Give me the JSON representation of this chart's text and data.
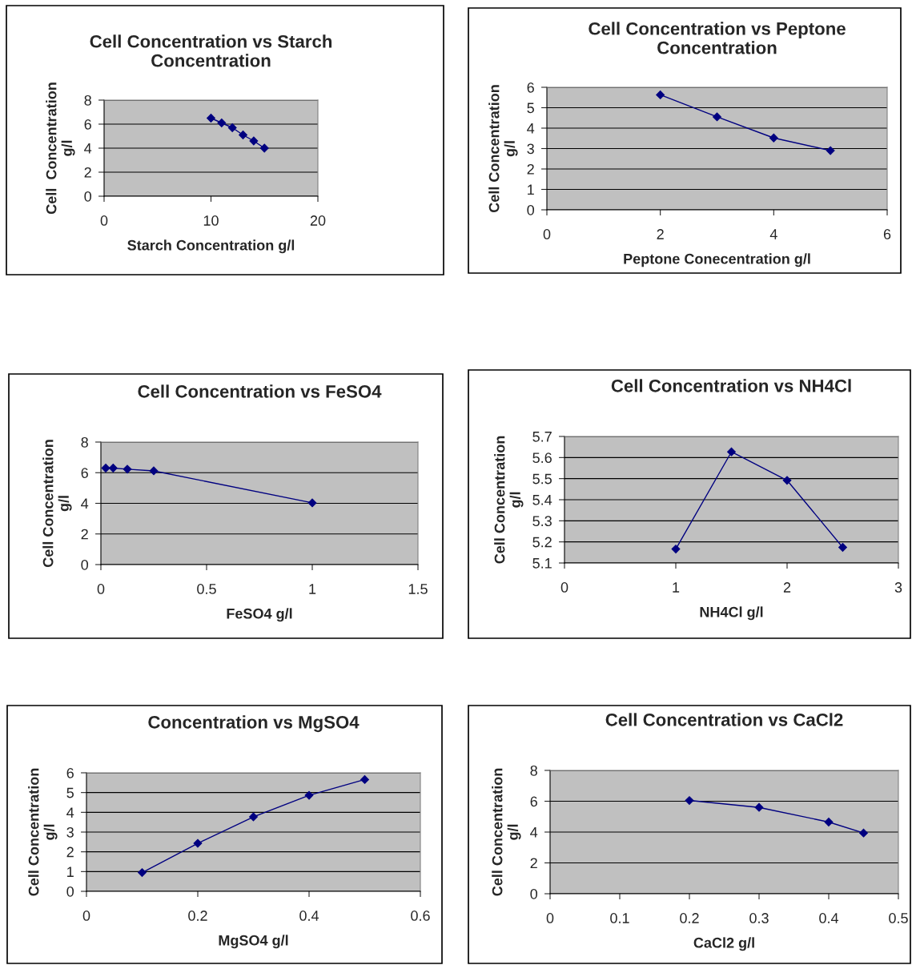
{
  "chart_data": [
    {
      "type": "line",
      "title": "Cell Concentration vs Starch\nConcentration",
      "xlabel": "Starch Concentration g/l",
      "ylabel": "Cell  Concentration\ng/l",
      "x": [
        10,
        11,
        12,
        13,
        14,
        15
      ],
      "series": [
        {
          "color": "#000080",
          "values": [
            6.5,
            6.1,
            5.7,
            5.1,
            4.6,
            4.0
          ]
        }
      ],
      "xlim": [
        0,
        20
      ],
      "xticks": [
        0,
        10,
        20
      ],
      "ylim": [
        0,
        8
      ],
      "yticks": [
        0,
        2,
        4,
        6,
        8
      ],
      "grid": "y",
      "marker": "diamond",
      "line_style": "solid"
    },
    {
      "type": "line",
      "title": "Cell Concentration vs Peptone\nConcentration",
      "xlabel": "Peptone Conecentration g/l",
      "ylabel": "Cell Concentration\ng/l",
      "x": [
        2,
        3,
        4,
        5
      ],
      "series": [
        {
          "color": "#000080",
          "values": [
            5.63,
            4.55,
            3.52,
            2.9
          ]
        }
      ],
      "xlim": [
        0,
        6
      ],
      "xticks": [
        0,
        2,
        4,
        6
      ],
      "ylim": [
        0,
        6
      ],
      "yticks": [
        0,
        1,
        2,
        3,
        4,
        5,
        6
      ],
      "grid": "y",
      "marker": "diamond",
      "line_style": "solid"
    },
    {
      "type": "line",
      "title": "Cell Concentration vs FeSO4",
      "xlabel": "FeSO4 g/l",
      "ylabel": "Cell Concentration\ng/l",
      "x": [
        0.023,
        0.058,
        0.125,
        0.25,
        1
      ],
      "series": [
        {
          "color": "#000080",
          "values": [
            6.3,
            6.3,
            6.23,
            6.12,
            4.03
          ]
        }
      ],
      "xlim": [
        0,
        1.5
      ],
      "xticks": [
        0,
        0.5,
        1,
        1.5
      ],
      "ylim": [
        0,
        8
      ],
      "yticks": [
        0,
        2,
        4,
        6,
        8
      ],
      "grid": "y",
      "marker": "diamond",
      "line_style": "solid"
    },
    {
      "type": "line",
      "title": "Cell Concentration vs NH4Cl",
      "xlabel": "NH4Cl g/l",
      "ylabel": "Cell Concentration\ng/l",
      "x": [
        1,
        1.5,
        2,
        2.5
      ],
      "series": [
        {
          "color": "#000080",
          "values": [
            5.166,
            5.627,
            5.492,
            5.174
          ]
        }
      ],
      "xlim": [
        0,
        3
      ],
      "xticks": [
        0,
        1,
        2,
        3
      ],
      "ylim": [
        5.1,
        5.7
      ],
      "yticks": [
        5.1,
        5.2,
        5.3,
        5.4,
        5.5,
        5.6,
        5.7
      ],
      "grid": "y",
      "marker": "diamond",
      "line_style": "solid"
    },
    {
      "type": "line",
      "title": "Concentration vs MgSO4",
      "xlabel": "MgSO4 g/l",
      "ylabel": "Cell Concentration\ng/l",
      "x": [
        0.1,
        0.2,
        0.3,
        0.4,
        0.5
      ],
      "series": [
        {
          "color": "#000080",
          "values": [
            0.95,
            2.43,
            3.77,
            4.86,
            5.66
          ]
        }
      ],
      "xlim": [
        0,
        0.6
      ],
      "xticks": [
        0,
        0.2,
        0.4,
        0.6
      ],
      "ylim": [
        0,
        6
      ],
      "yticks": [
        0,
        1,
        2,
        3,
        4,
        5,
        6
      ],
      "grid": "y",
      "marker": "diamond",
      "line_style": "solid"
    },
    {
      "type": "line",
      "title": "Cell Concentration vs CaCl2",
      "xlabel": "CaCl2 g/l",
      "ylabel": "Cell Concentration\ng/l",
      "x": [
        0.2,
        0.3,
        0.4,
        0.45
      ],
      "series": [
        {
          "color": "#000080",
          "values": [
            6.05,
            5.6,
            4.65,
            3.94
          ]
        }
      ],
      "xlim": [
        0,
        0.5
      ],
      "xticks": [
        0,
        0.1,
        0.2,
        0.3,
        0.4,
        0.5
      ],
      "ylim": [
        0,
        8
      ],
      "yticks": [
        0,
        2,
        4,
        6,
        8
      ],
      "grid": "y",
      "marker": "diamond",
      "line_style": "solid"
    }
  ]
}
